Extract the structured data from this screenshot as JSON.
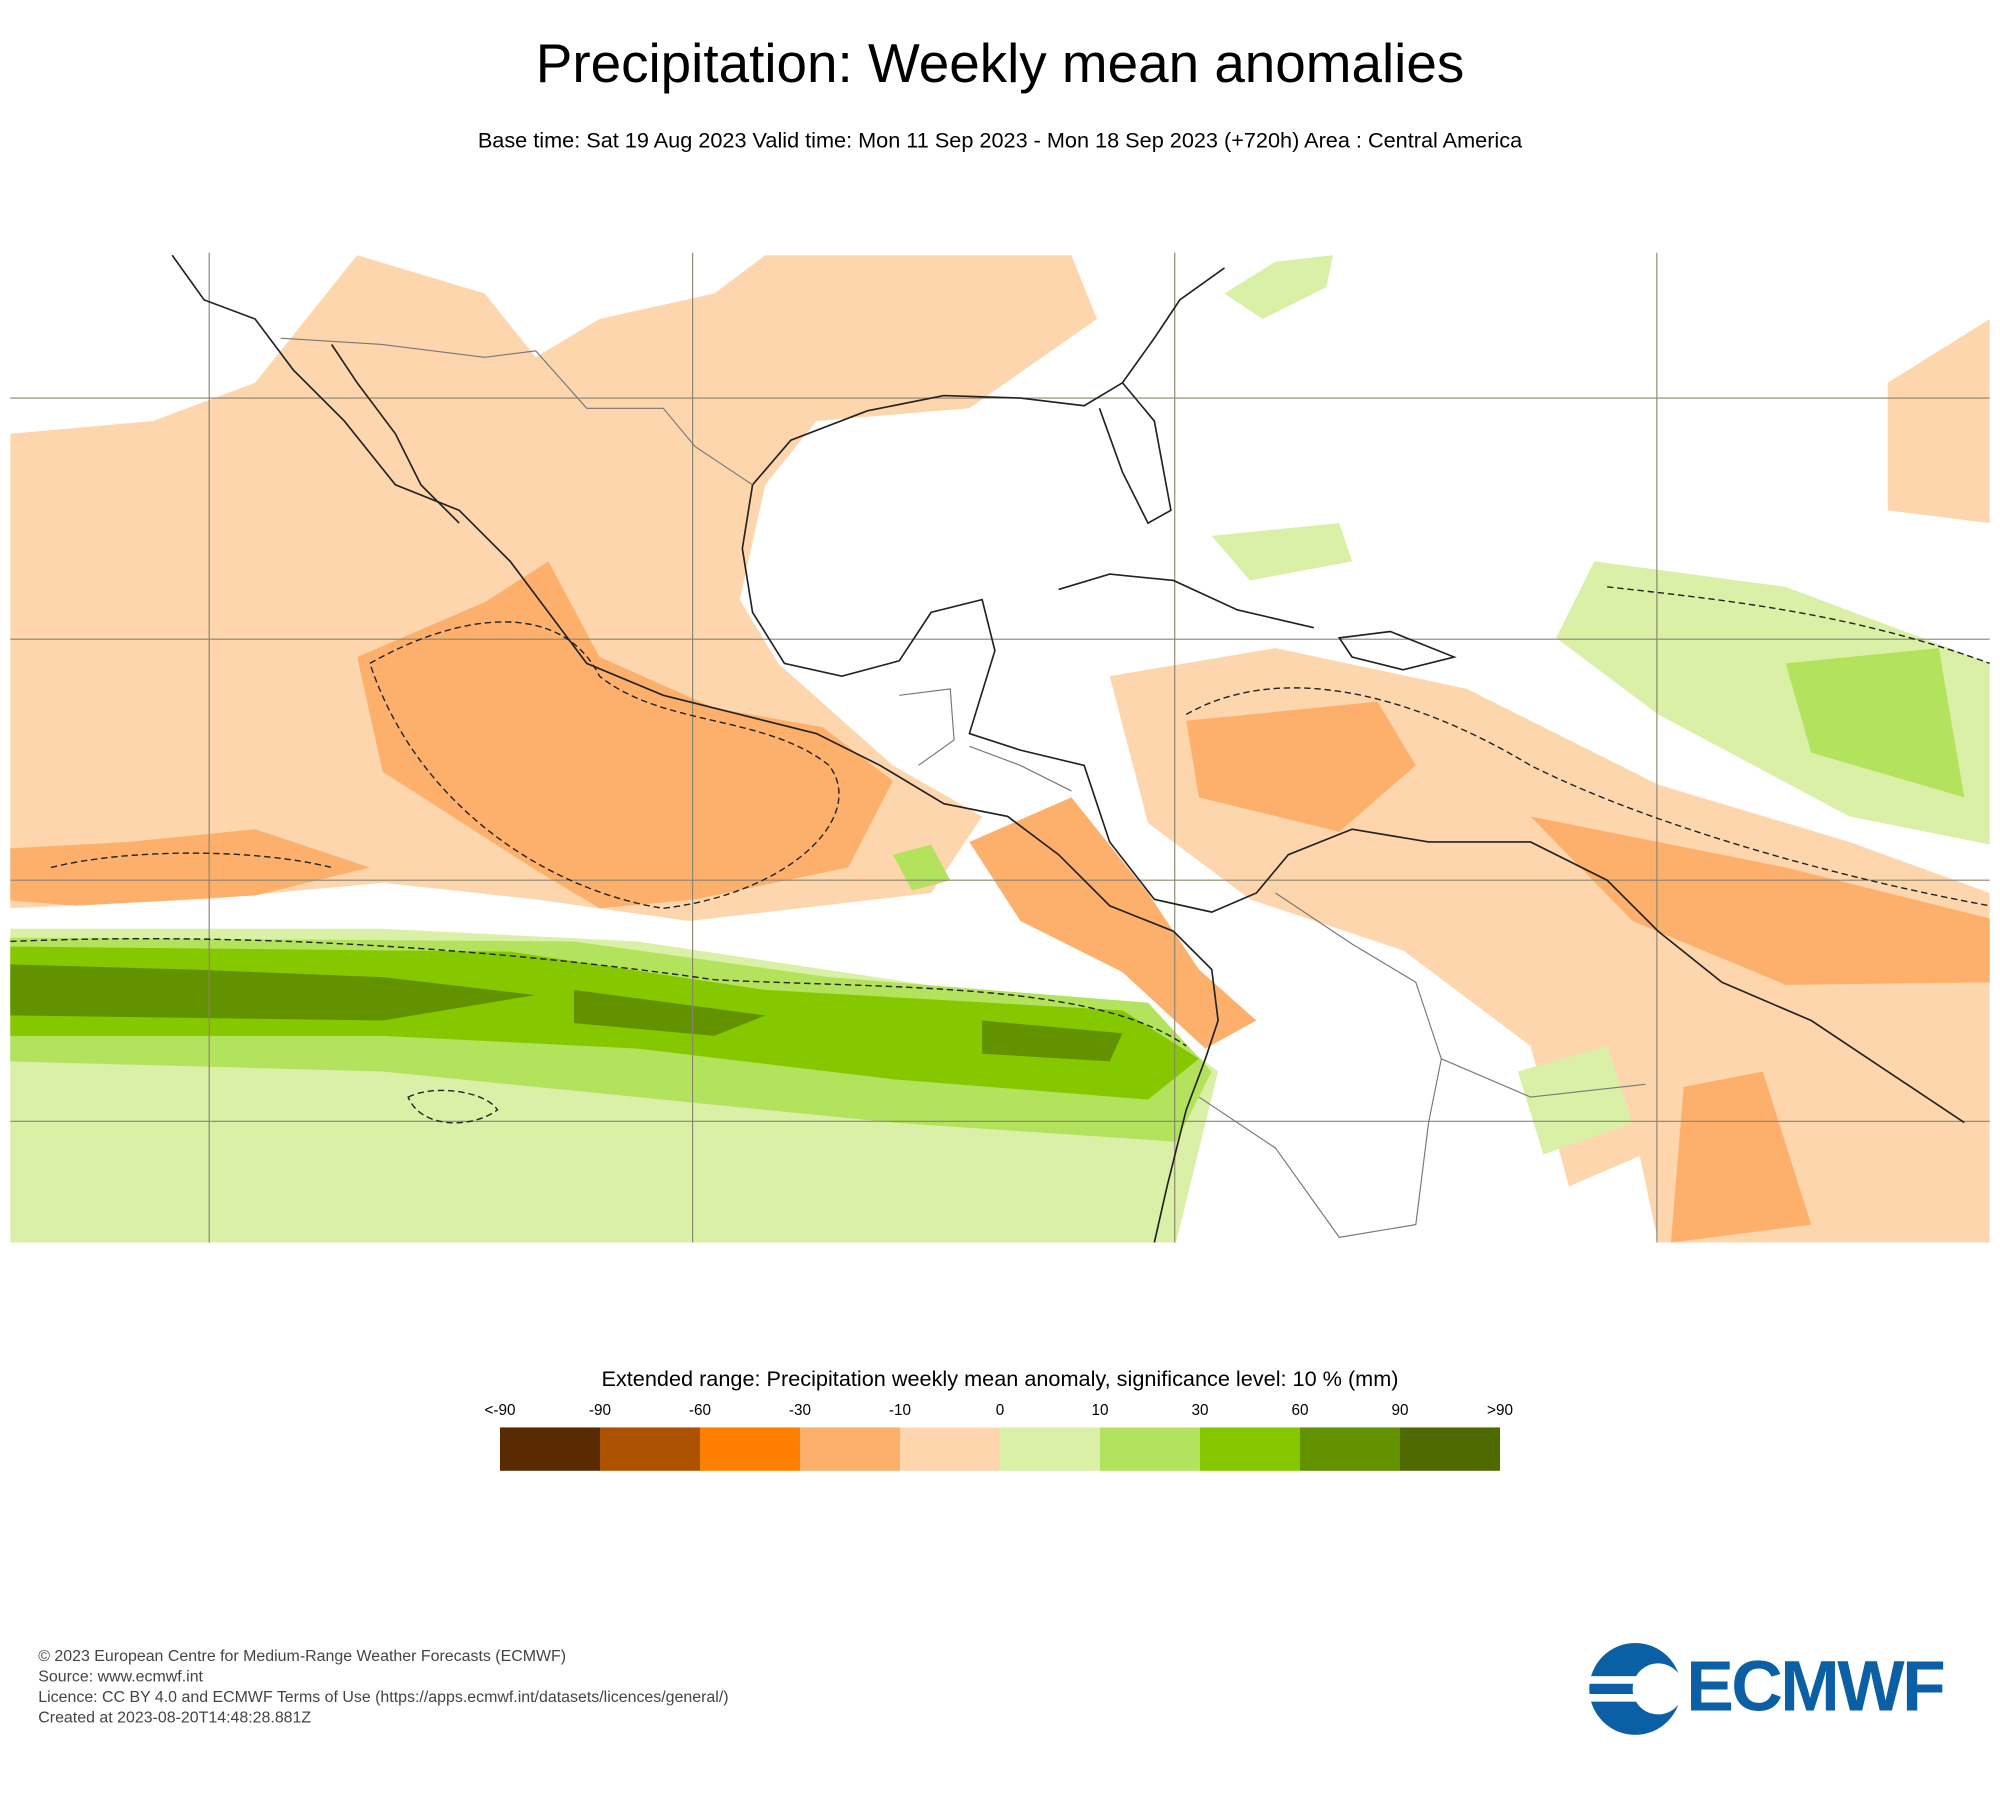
{
  "header": {
    "title": "Precipitation: Weekly mean anomalies",
    "subtitle": "Base time: Sat 19 Aug 2023 Valid time: Mon 11 Sep 2023 - Mon 18 Sep 2023 (+720h) Area : Central America"
  },
  "legend": {
    "title": "Extended range: Precipitation weekly mean anomaly, significance level: 10 % (mm)",
    "labels": [
      "<-90",
      "-90",
      "-60",
      "-30",
      "-10",
      "0",
      "10",
      "30",
      "60",
      "90",
      ">90"
    ],
    "colors": [
      "#5a2a02",
      "#ad5200",
      "#ff8000",
      "#fdb06b",
      "#fdd6ad",
      "#d9f0a6",
      "#b3e35c",
      "#86c800",
      "#639200",
      "#4f6a00"
    ]
  },
  "footer": {
    "lines": [
      "© 2023 European Centre for Medium-Range Weather Forecasts (ECMWF)",
      "Source: www.ecmwf.int",
      "Licence: CC BY 4.0 and ECMWF Terms of Use (https://apps.ecmwf.int/datasets/licences/general/)",
      "Created at 2023-08-20T14:48:28.881Z"
    ]
  },
  "logo": {
    "text": "ECMWF"
  }
}
